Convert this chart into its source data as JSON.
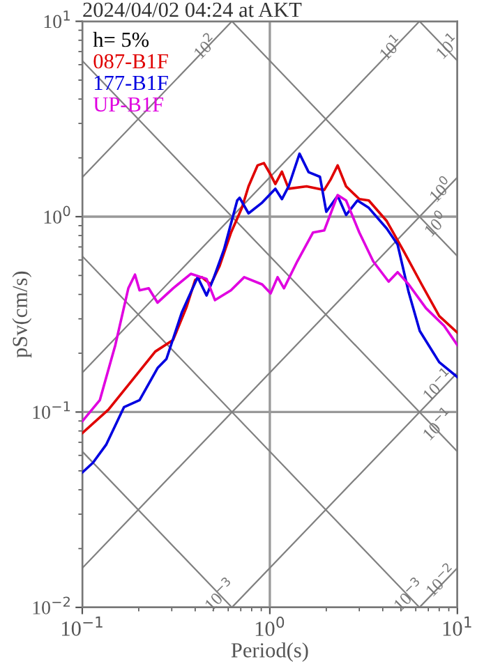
{
  "chart_data": {
    "type": "line",
    "title": "2024/04/02 04:24 at AKT",
    "xlabel": "Period(s)",
    "ylabel": "pSv(cm/s)",
    "legend_title": "h= 5%",
    "legend": "top left",
    "log": "xy",
    "grid": true,
    "xlim": [
      0.1,
      10
    ],
    "ylim": [
      0.01,
      10
    ],
    "xticks": [
      {
        "value": 0.1,
        "label": "10$^{−1}$"
      },
      {
        "value": 1,
        "label": "10$^{0}$"
      },
      {
        "value": 10,
        "label": "10$^{1}$"
      }
    ],
    "yticks": [
      {
        "value": 0.01,
        "label": "10$^{−2}$"
      },
      {
        "value": 0.1,
        "label": "10$^{−1}$"
      },
      {
        "value": 1,
        "label": "10$^{0}$"
      },
      {
        "value": 10,
        "label": "10$^{1}$"
      }
    ],
    "series": [
      {
        "color": "#808080",
        "x": [
          0.1,
          0.628
        ],
        "values": [
          1.59,
          10
        ]
      },
      {
        "color": "#808080",
        "x": [
          0.1,
          6.28
        ],
        "values": [
          0.159,
          10
        ]
      },
      {
        "color": "#808080",
        "x": [
          0.1,
          10
        ],
        "values": [
          0.0159,
          1.59
        ]
      },
      {
        "color": "#808080",
        "x": [
          0.628,
          10
        ],
        "values": [
          0.01,
          0.159
        ]
      },
      {
        "color": "#808080",
        "x": [
          6.28,
          10
        ],
        "values": [
          0.01,
          0.0159
        ]
      },
      {
        "color": "#808080",
        "x": [
          6.28,
          10
        ],
        "values": [
          10,
          6.28
        ]
      },
      {
        "color": "#808080",
        "x": [
          0.628,
          10
        ],
        "values": [
          10,
          0.628
        ]
      },
      {
        "color": "#808080",
        "x": [
          0.1,
          10
        ],
        "values": [
          6.28,
          0.0628
        ]
      },
      {
        "color": "#808080",
        "x": [
          0.1,
          6.28
        ],
        "values": [
          0.628,
          0.01
        ]
      },
      {
        "color": "#808080",
        "x": [
          0.1,
          0.628
        ],
        "values": [
          0.0628,
          0.01
        ]
      },
      {
        "name": "087-B1F",
        "color": "#e00000",
        "x": [
          0.1,
          0.138,
          0.186,
          0.245,
          0.305,
          0.359,
          0.4,
          0.434,
          0.484,
          0.54,
          0.62,
          0.71,
          0.77,
          0.86,
          0.93,
          1.01,
          1.07,
          1.16,
          1.26,
          1.57,
          1.95,
          2.11,
          2.3,
          2.55,
          3.0,
          3.37,
          4.2,
          5.2,
          6.45,
          8.0,
          10
        ],
        "values": [
          0.078,
          0.103,
          0.147,
          0.204,
          0.234,
          0.343,
          0.475,
          0.49,
          0.45,
          0.56,
          0.826,
          1.11,
          1.43,
          1.83,
          1.88,
          1.64,
          1.47,
          1.7,
          1.39,
          1.43,
          1.37,
          1.55,
          1.83,
          1.43,
          1.23,
          1.21,
          0.95,
          0.66,
          0.45,
          0.31,
          0.255
        ]
      },
      {
        "name": "177-B1F",
        "color": "#0000e0",
        "x": [
          0.1,
          0.114,
          0.134,
          0.167,
          0.202,
          0.252,
          0.281,
          0.34,
          0.412,
          0.46,
          0.5,
          0.57,
          0.67,
          0.69,
          0.77,
          0.91,
          1.07,
          1.16,
          1.26,
          1.44,
          1.61,
          1.85,
          2.0,
          2.3,
          2.55,
          2.93,
          3.37,
          4.2,
          4.8,
          5.5,
          6.3,
          8.0,
          10
        ],
        "values": [
          0.049,
          0.055,
          0.068,
          0.106,
          0.115,
          0.168,
          0.187,
          0.325,
          0.49,
          0.395,
          0.48,
          0.68,
          1.21,
          1.25,
          1.04,
          1.18,
          1.39,
          1.23,
          1.43,
          2.1,
          1.69,
          1.6,
          1.06,
          1.28,
          1.02,
          1.21,
          1.11,
          0.87,
          0.72,
          0.41,
          0.26,
          0.18,
          0.151
        ]
      },
      {
        "name": "UP-B1F",
        "color": "#e000e0",
        "x": [
          0.1,
          0.124,
          0.15,
          0.176,
          0.191,
          0.202,
          0.226,
          0.252,
          0.305,
          0.379,
          0.46,
          0.51,
          0.62,
          0.73,
          0.91,
          1.01,
          1.1,
          1.19,
          1.4,
          1.7,
          1.95,
          2.3,
          2.55,
          3.0,
          3.56,
          4.3,
          4.8,
          5.5,
          6.8,
          8.5,
          10
        ],
        "values": [
          0.0896,
          0.115,
          0.22,
          0.43,
          0.505,
          0.42,
          0.43,
          0.363,
          0.43,
          0.51,
          0.48,
          0.374,
          0.42,
          0.49,
          0.45,
          0.405,
          0.49,
          0.43,
          0.59,
          0.83,
          0.85,
          1.29,
          1.21,
          0.83,
          0.59,
          0.465,
          0.52,
          0.45,
          0.34,
          0.276,
          0.22
        ]
      }
    ],
    "annotations": [
      {
        "text": "10$^{2}$",
        "x": 0.46,
        "y": 7.3
      },
      {
        "text": "10$^{1}$",
        "x": 4.5,
        "y": 7.2
      },
      {
        "text": "10$^{1}$",
        "x": 9.0,
        "y": 7.3
      },
      {
        "text": "10$^{0}$",
        "x": 8.3,
        "y": 1.35
      },
      {
        "text": "10$^{0}$",
        "x": 7.8,
        "y": 0.9
      },
      {
        "text": "10$^{−1}$",
        "x": 8.0,
        "y": 0.135
      },
      {
        "text": "10$^{−1}$",
        "x": 8.0,
        "y": 0.085
      },
      {
        "text": "10$^{−3}$",
        "x": 0.55,
        "y": 0.0114
      },
      {
        "text": "10$^{−3}$",
        "x": 5.6,
        "y": 0.0114
      },
      {
        "text": "10$^{−2}$",
        "x": 8.3,
        "y": 0.0135
      }
    ]
  }
}
